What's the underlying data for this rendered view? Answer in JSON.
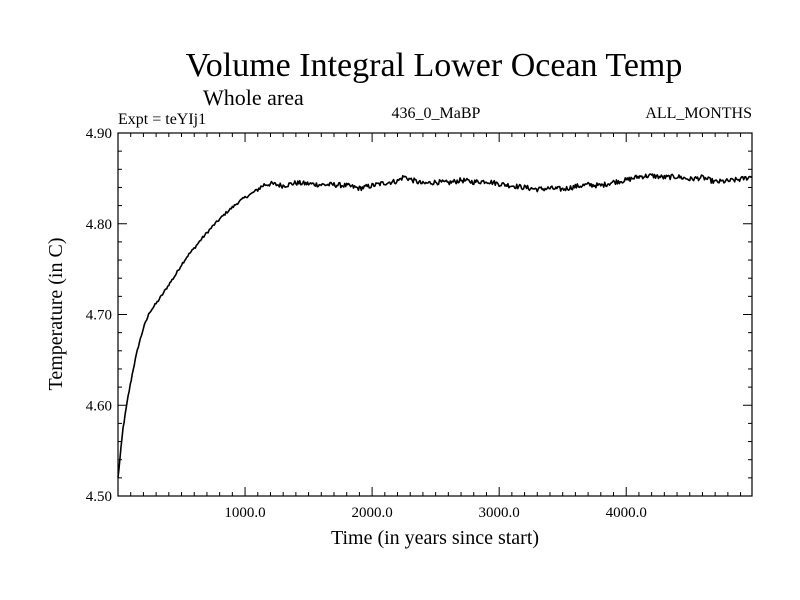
{
  "chart_data": {
    "type": "line",
    "title": "Volume Integral Lower Ocean Temp",
    "subtitle": "Whole area",
    "experiment": "Expt = teYIj1",
    "period": "436_0_MaBP",
    "months": "ALL_MONTHS",
    "xlabel": "Time (in years since start)",
    "ylabel": "Temperature (in C)",
    "xlim": [
      0,
      4990
    ],
    "ylim": [
      4.5,
      4.9
    ],
    "xticks": [
      1000,
      2000,
      3000,
      4000
    ],
    "xtick_labels": [
      "1000.0",
      "2000.0",
      "3000.0",
      "4000.0"
    ],
    "yticks": [
      4.5,
      4.6,
      4.7,
      4.8,
      4.9
    ],
    "ytick_labels": [
      "4.50",
      "4.60",
      "4.70",
      "4.80",
      "4.90"
    ],
    "grid": false,
    "series": [
      {
        "name": "teYIj1",
        "x": [
          0,
          40,
          80,
          120,
          160,
          200,
          250,
          300,
          350,
          400,
          450,
          500,
          550,
          600,
          650,
          700,
          750,
          800,
          850,
          900,
          950,
          1000,
          1050,
          1100,
          1150,
          1200,
          1300,
          1400,
          1500,
          1600,
          1700,
          1800,
          1900,
          2000,
          2100,
          2200,
          2250,
          2300,
          2400,
          2500,
          2600,
          2700,
          2800,
          2900,
          3000,
          3100,
          3200,
          3300,
          3400,
          3500,
          3600,
          3700,
          3800,
          3900,
          4000,
          4100,
          4200,
          4300,
          4400,
          4500,
          4600,
          4700,
          4800,
          4900,
          4990
        ],
        "values": [
          4.52,
          4.575,
          4.61,
          4.64,
          4.665,
          4.685,
          4.703,
          4.712,
          4.722,
          4.733,
          4.743,
          4.755,
          4.765,
          4.773,
          4.782,
          4.79,
          4.798,
          4.805,
          4.812,
          4.818,
          4.824,
          4.829,
          4.833,
          4.838,
          4.843,
          4.844,
          4.842,
          4.845,
          4.844,
          4.843,
          4.843,
          4.842,
          4.839,
          4.842,
          4.845,
          4.847,
          4.852,
          4.849,
          4.844,
          4.846,
          4.845,
          4.848,
          4.846,
          4.847,
          4.844,
          4.842,
          4.84,
          4.838,
          4.839,
          4.838,
          4.841,
          4.843,
          4.842,
          4.846,
          4.848,
          4.852,
          4.853,
          4.851,
          4.852,
          4.849,
          4.851,
          4.846,
          4.847,
          4.849,
          4.852
        ]
      }
    ]
  }
}
